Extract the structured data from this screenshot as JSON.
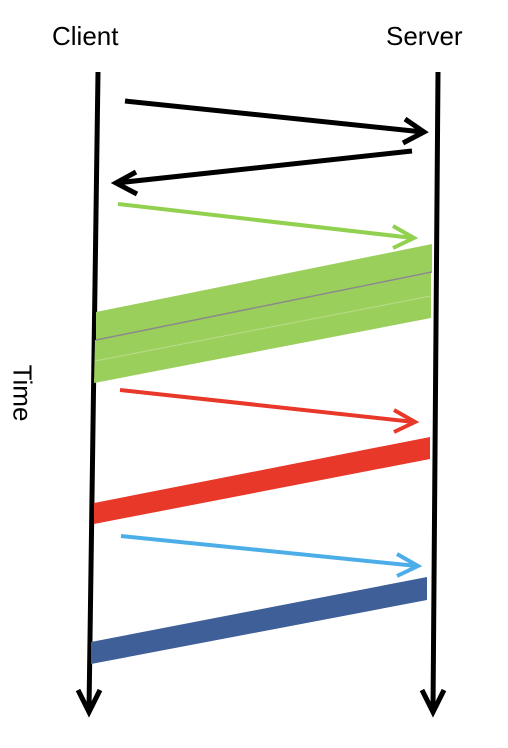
{
  "labels": {
    "client": "Client",
    "server": "Server",
    "time": "Time"
  },
  "colors": {
    "axis": "#000000",
    "handshake": "#000000",
    "green_arrow": "#92d050",
    "green_band": "#9bcf5c",
    "red": "#e8382a",
    "blue_arrow": "#4baee8",
    "blue_band": "#3f5f98"
  },
  "icons": {
    "arrowheads": "open-chevron-arrowhead"
  }
}
